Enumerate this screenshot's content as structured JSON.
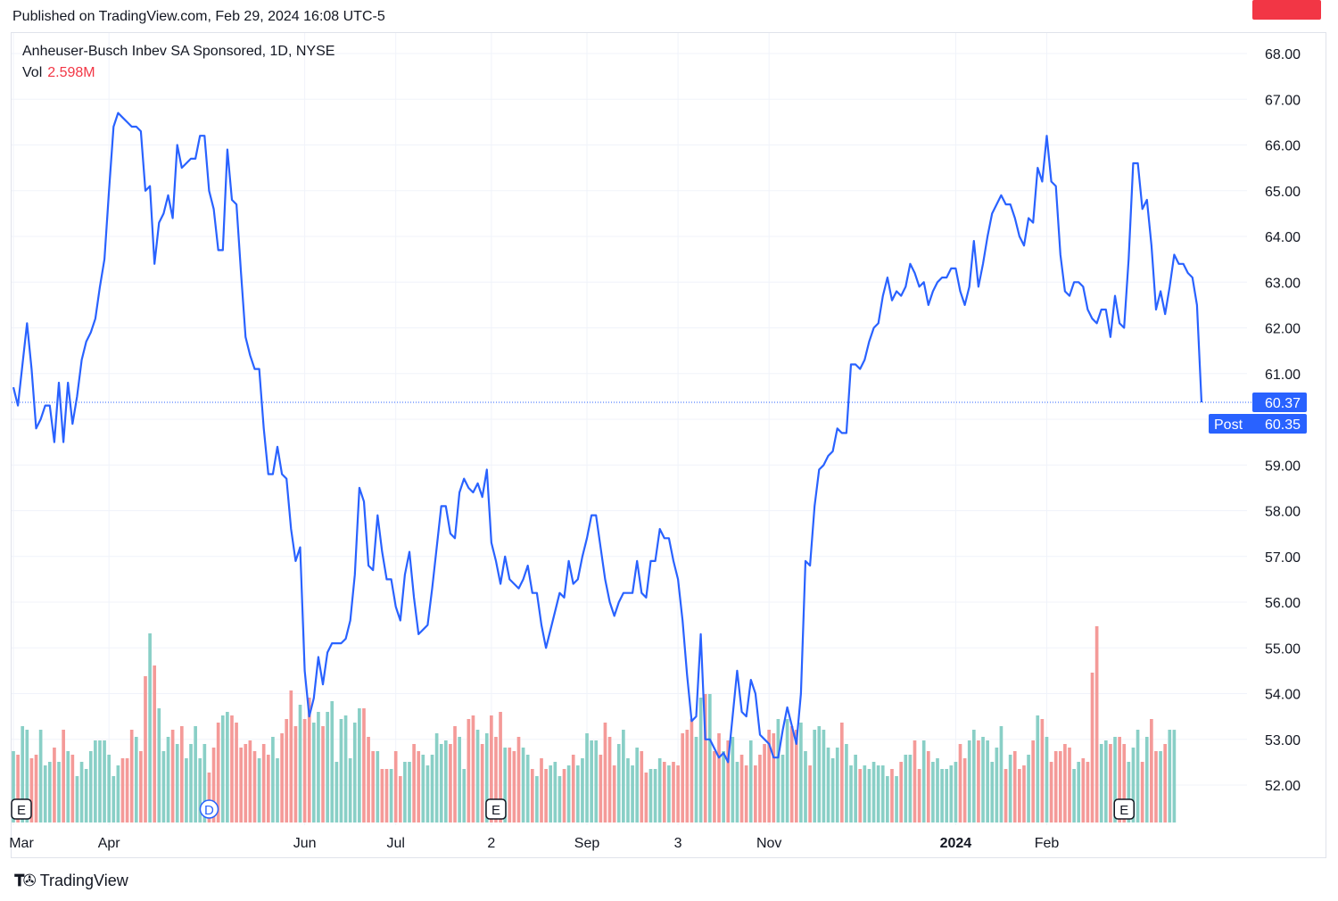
{
  "header": {
    "published": "Published on TradingView.com, Feb 29, 2024 16:08 UTC-5"
  },
  "legend": {
    "title": "Anheuser-Busch Inbev SA Sponsored, 1D, NYSE",
    "vol_label": "Vol",
    "vol_value": "2.598M"
  },
  "footer": {
    "brand": "TradingView"
  },
  "colors": {
    "line": "#2962ff",
    "vol_up": "#89cfc6",
    "vol_down": "#f49a98",
    "price_tag": "#2962ff",
    "vol_tag": "#f23645",
    "grid": "#f0f3fa"
  },
  "chart_data": {
    "type": "line",
    "title": "Anheuser-Busch Inbev SA Sponsored, 1D, NYSE",
    "ylim": [
      51.0,
      68.5
    ],
    "y_ticks": [
      "52.00",
      "53.00",
      "54.00",
      "55.00",
      "56.00",
      "57.00",
      "58.00",
      "59.00",
      "60.00",
      "61.00",
      "62.00",
      "63.00",
      "64.00",
      "65.00",
      "66.00",
      "67.00",
      "68.00"
    ],
    "x_labels": [
      {
        "label": "Mar",
        "index": 0,
        "bold": false
      },
      {
        "label": "Apr",
        "index": 21,
        "bold": false
      },
      {
        "label": "Jun",
        "index": 64,
        "bold": false
      },
      {
        "label": "Jul",
        "index": 84,
        "bold": false
      },
      {
        "label": "2",
        "index": 105,
        "bold": false
      },
      {
        "label": "Sep",
        "index": 126,
        "bold": false
      },
      {
        "label": "3",
        "index": 146,
        "bold": false
      },
      {
        "label": "Nov",
        "index": 166,
        "bold": false
      },
      {
        "label": "2024",
        "index": 207,
        "bold": true
      },
      {
        "label": "Feb",
        "index": 227,
        "bold": false
      }
    ],
    "events": [
      {
        "type": "E",
        "index": 1
      },
      {
        "type": "D",
        "index": 43
      },
      {
        "type": "E",
        "index": 106
      },
      {
        "type": "E",
        "index": 244
      }
    ],
    "last_price": "60.37",
    "post_label": "Post",
    "post_price": "60.35",
    "last_price_value": 60.37,
    "volume_last": "2.598M",
    "series": [
      {
        "name": "Price",
        "values": [
          60.7,
          60.3,
          61.2,
          62.1,
          61.1,
          59.8,
          60.0,
          60.3,
          60.3,
          59.5,
          60.8,
          59.5,
          60.8,
          59.9,
          60.5,
          61.3,
          61.7,
          61.9,
          62.2,
          62.9,
          63.5,
          65.0,
          66.4,
          66.7,
          66.6,
          66.5,
          66.4,
          66.4,
          66.3,
          65.0,
          65.1,
          63.4,
          64.3,
          64.5,
          64.9,
          64.4,
          66.0,
          65.5,
          65.6,
          65.7,
          65.7,
          66.2,
          66.2,
          65.0,
          64.6,
          63.7,
          63.7,
          65.9,
          64.8,
          64.7,
          63.2,
          61.8,
          61.4,
          61.1,
          61.1,
          59.8,
          58.8,
          58.8,
          59.4,
          58.8,
          58.7,
          57.6,
          56.9,
          57.2,
          54.5,
          53.5,
          53.9,
          54.8,
          54.2,
          54.9,
          55.1,
          55.1,
          55.1,
          55.2,
          55.6,
          56.6,
          58.5,
          58.2,
          56.8,
          56.7,
          57.9,
          57.1,
          56.5,
          56.5,
          55.9,
          55.6,
          56.6,
          57.1,
          56.1,
          55.3,
          55.4,
          55.5,
          56.3,
          57.2,
          58.1,
          58.1,
          57.5,
          57.4,
          58.4,
          58.7,
          58.5,
          58.4,
          58.6,
          58.3,
          58.9,
          57.3,
          56.9,
          56.4,
          57.0,
          56.5,
          56.4,
          56.3,
          56.5,
          56.8,
          56.2,
          56.2,
          55.5,
          55.0,
          55.4,
          55.8,
          56.2,
          56.1,
          56.9,
          56.4,
          56.5,
          57.0,
          57.4,
          57.9,
          57.9,
          57.2,
          56.5,
          56.0,
          55.7,
          56.0,
          56.2,
          56.2,
          56.2,
          56.9,
          56.2,
          56.1,
          56.9,
          56.9,
          57.6,
          57.4,
          57.4,
          56.9,
          56.5,
          55.6,
          54.4,
          53.4,
          53.5,
          55.3,
          53.0,
          53.0,
          52.8,
          52.6,
          52.7,
          52.5,
          53.5,
          54.5,
          53.6,
          53.5,
          54.3,
          54.0,
          53.1,
          53.0,
          52.9,
          52.6,
          52.6,
          53.2,
          53.7,
          53.3,
          52.9,
          54.0,
          56.9,
          56.8,
          58.1,
          58.9,
          59.0,
          59.2,
          59.3,
          59.8,
          59.7,
          59.7,
          61.2,
          61.2,
          61.1,
          61.3,
          61.7,
          62.0,
          62.1,
          62.7,
          63.1,
          62.6,
          62.8,
          62.7,
          62.9,
          63.4,
          63.2,
          62.9,
          63.0,
          62.5,
          62.8,
          63.0,
          63.1,
          63.1,
          63.3,
          63.3,
          62.8,
          62.5,
          62.9,
          63.9,
          62.9,
          63.4,
          64.0,
          64.5,
          64.7,
          64.9,
          64.7,
          64.7,
          64.4,
          64.0,
          63.8,
          64.4,
          64.3,
          65.5,
          65.2,
          66.2,
          65.2,
          65.1,
          63.6,
          62.8,
          62.7,
          63.0,
          63.0,
          62.9,
          62.4,
          62.2,
          62.1,
          62.4,
          62.4,
          61.8,
          62.7,
          62.1,
          62.0,
          63.5,
          65.6,
          65.6,
          64.6,
          64.8,
          63.8,
          62.4,
          62.8,
          62.3,
          62.9,
          63.6,
          63.4,
          63.4,
          63.2,
          63.1,
          62.5,
          60.37
        ]
      },
      {
        "name": "Volume",
        "values": [
          2.0,
          1.9,
          2.7,
          2.6,
          1.8,
          1.9,
          2.6,
          1.6,
          1.7,
          2.1,
          1.7,
          2.6,
          2.0,
          1.9,
          1.3,
          1.7,
          1.5,
          2.0,
          2.3,
          2.3,
          2.3,
          1.9,
          1.3,
          1.6,
          1.8,
          1.8,
          2.6,
          2.4,
          2.0,
          4.1,
          5.3,
          4.4,
          3.2,
          2.0,
          2.4,
          2.6,
          2.2,
          2.7,
          1.8,
          2.2,
          2.7,
          1.8,
          2.2,
          1.4,
          2.1,
          2.8,
          3.0,
          3.1,
          3.0,
          2.8,
          2.1,
          2.2,
          2.3,
          2.0,
          1.8,
          2.2,
          1.9,
          2.4,
          1.8,
          2.5,
          2.9,
          3.7,
          2.7,
          3.3,
          2.9,
          3.5,
          2.8,
          3.1,
          2.7,
          3.1,
          3.4,
          1.7,
          2.9,
          3.0,
          1.8,
          2.8,
          3.2,
          3.2,
          2.4,
          2.0,
          2.0,
          1.5,
          1.5,
          1.5,
          2.0,
          1.3,
          1.7,
          1.7,
          2.2,
          2.0,
          1.9,
          1.6,
          1.9,
          2.5,
          2.2,
          2.3,
          2.2,
          2.7,
          2.4,
          1.5,
          2.9,
          3.0,
          2.6,
          2.2,
          2.5,
          3.0,
          2.4,
          3.1,
          2.1,
          2.1,
          2.0,
          2.4,
          2.1,
          1.9,
          1.5,
          1.3,
          1.8,
          1.5,
          1.6,
          1.7,
          1.3,
          1.5,
          1.6,
          1.9,
          1.6,
          1.8,
          2.5,
          2.3,
          2.3,
          1.9,
          2.8,
          2.4,
          1.6,
          2.2,
          2.6,
          1.8,
          1.6,
          2.1,
          2.0,
          1.4,
          1.5,
          1.5,
          1.8,
          1.7,
          1.6,
          1.7,
          1.6,
          2.5,
          2.6,
          2.9,
          2.4,
          3.5,
          3.6,
          3.6,
          2.0,
          2.5,
          2.0,
          2.3,
          2.4,
          1.7,
          1.9,
          1.6,
          2.3,
          1.6,
          1.9,
          2.2,
          2.6,
          2.5,
          2.9,
          1.9,
          2.9,
          2.7,
          2.6,
          2.8,
          2.0,
          1.6,
          2.6,
          2.7,
          2.6,
          2.1,
          1.8,
          2.1,
          2.8,
          2.2,
          1.6,
          1.9,
          1.5,
          1.6,
          1.5,
          1.7,
          1.6,
          1.6,
          1.3,
          1.5,
          1.3,
          1.7,
          1.9,
          1.9,
          2.3,
          1.5,
          2.3,
          2.0,
          1.7,
          1.8,
          1.5,
          1.5,
          1.6,
          1.7,
          2.2,
          1.8,
          2.3,
          2.6,
          2.3,
          2.4,
          2.3,
          1.7,
          2.1,
          2.7,
          1.5,
          1.9,
          2.0,
          1.5,
          1.6,
          1.9,
          2.3,
          3.0,
          2.9,
          2.4,
          1.7,
          2.0,
          2.0,
          2.2,
          2.1,
          1.5,
          1.7,
          1.8,
          1.7,
          4.2,
          5.5,
          2.2,
          2.3,
          2.2,
          2.4,
          2.4,
          2.2,
          1.7,
          2.1,
          2.6,
          1.7,
          2.4,
          2.9,
          2.0,
          2.0,
          2.2,
          2.6,
          2.598
        ]
      }
    ]
  }
}
